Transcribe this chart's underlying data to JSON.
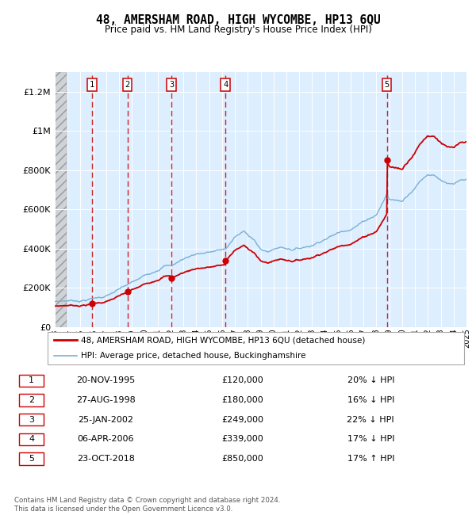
{
  "title": "48, AMERSHAM ROAD, HIGH WYCOMBE, HP13 6QU",
  "subtitle": "Price paid vs. HM Land Registry's House Price Index (HPI)",
  "footnote": "Contains HM Land Registry data © Crown copyright and database right 2024.\nThis data is licensed under the Open Government Licence v3.0.",
  "legend_price_label": "48, AMERSHAM ROAD, HIGH WYCOMBE, HP13 6QU (detached house)",
  "legend_hpi_label": "HPI: Average price, detached house, Buckinghamshire",
  "price_color": "#cc0000",
  "hpi_color": "#7ab0d4",
  "sale_marker_color": "#cc0000",
  "vline_color": "#cc0000",
  "bg_color": "#ddeeff",
  "ylim": [
    0,
    1300000
  ],
  "yticks": [
    0,
    200000,
    400000,
    600000,
    800000,
    1000000,
    1200000
  ],
  "ytick_labels": [
    "£0",
    "£200K",
    "£400K",
    "£600K",
    "£800K",
    "£1M",
    "£1.2M"
  ],
  "xstart": 1993,
  "xend": 2025,
  "sales": [
    {
      "num": 1,
      "date": "20-NOV-1995",
      "year": 1995.89,
      "price": 120000
    },
    {
      "num": 2,
      "date": "27-AUG-1998",
      "year": 1998.65,
      "price": 180000
    },
    {
      "num": 3,
      "date": "25-JAN-2002",
      "year": 2002.07,
      "price": 249000
    },
    {
      "num": 4,
      "date": "06-APR-2006",
      "year": 2006.27,
      "price": 339000
    },
    {
      "num": 5,
      "date": "23-OCT-2018",
      "year": 2018.82,
      "price": 850000
    }
  ],
  "table_rows": [
    {
      "num": 1,
      "date": "20-NOV-1995",
      "price": "£120,000",
      "pct": "20% ↓ HPI"
    },
    {
      "num": 2,
      "date": "27-AUG-1998",
      "price": "£180,000",
      "pct": "16% ↓ HPI"
    },
    {
      "num": 3,
      "date": "25-JAN-2002",
      "price": "£249,000",
      "pct": "22% ↓ HPI"
    },
    {
      "num": 4,
      "date": "06-APR-2006",
      "price": "£339,000",
      "pct": "17% ↓ HPI"
    },
    {
      "num": 5,
      "date": "23-OCT-2018",
      "price": "£850,000",
      "pct": "17% ↑ HPI"
    }
  ]
}
